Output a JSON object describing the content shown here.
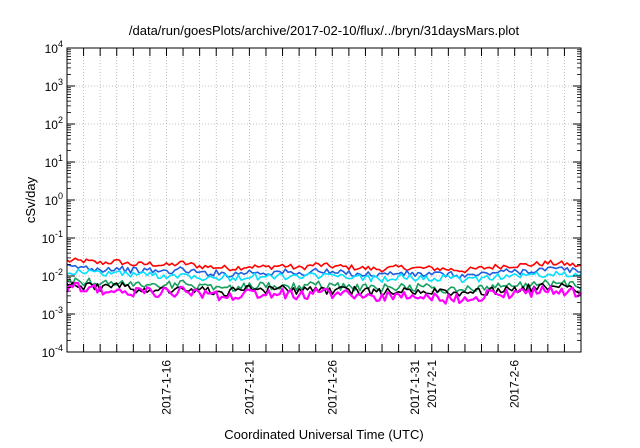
{
  "chart_data": {
    "type": "line",
    "title": "/data/run/goesPlots/archive/2017-02-10/flux/../bryn/31daysMars.plot",
    "xlabel": "Coordinated Universal Time (UTC)",
    "ylabel": "cSv/day",
    "yscale": "log",
    "ylim": [
      0.0001,
      10000
    ],
    "y_ticks": [
      {
        "value": 0.0001,
        "base": "10",
        "exp": "-4"
      },
      {
        "value": 0.001,
        "base": "10",
        "exp": "-3"
      },
      {
        "value": 0.01,
        "base": "10",
        "exp": "-2"
      },
      {
        "value": 0.1,
        "base": "10",
        "exp": "-1"
      },
      {
        "value": 1,
        "base": "10",
        "exp": "0"
      },
      {
        "value": 10,
        "base": "10",
        "exp": "1"
      },
      {
        "value": 100,
        "base": "10",
        "exp": "2"
      },
      {
        "value": 1000,
        "base": "10",
        "exp": "3"
      },
      {
        "value": 10000,
        "base": "10",
        "exp": "4"
      }
    ],
    "xlim": [
      "2017-01-10",
      "2017-02-10"
    ],
    "x_ticks": [
      "2017-1-16",
      "2017-1-21",
      "2017-1-26",
      "2017-1-31",
      "2017-2-1",
      "2017-2-6"
    ],
    "x_tick_dates": [
      "2017-01-16",
      "2017-01-21",
      "2017-01-26",
      "2017-01-31",
      "2017-02-01",
      "2017-02-06"
    ],
    "grid": true,
    "x_daily": [
      "2017-01-11",
      "2017-01-12",
      "2017-01-13",
      "2017-01-14",
      "2017-01-15",
      "2017-01-16",
      "2017-01-17",
      "2017-01-18",
      "2017-01-19",
      "2017-01-20",
      "2017-01-21",
      "2017-01-22",
      "2017-01-23",
      "2017-01-24",
      "2017-01-25",
      "2017-01-26",
      "2017-01-27",
      "2017-01-28",
      "2017-01-29",
      "2017-01-30",
      "2017-01-31",
      "2017-02-01",
      "2017-02-02",
      "2017-02-03",
      "2017-02-04",
      "2017-02-05",
      "2017-02-06",
      "2017-02-07",
      "2017-02-08",
      "2017-02-09",
      "2017-02-10"
    ],
    "series": [
      {
        "color": "#ff0000",
        "values": [
          0.025,
          0.022,
          0.024,
          0.02,
          0.021,
          0.019,
          0.022,
          0.018,
          0.017,
          0.016,
          0.018,
          0.017,
          0.019,
          0.016,
          0.02,
          0.018,
          0.017,
          0.016,
          0.015,
          0.017,
          0.016,
          0.016,
          0.015,
          0.014,
          0.016,
          0.018,
          0.019,
          0.02,
          0.022,
          0.021,
          0.018
        ]
      },
      {
        "color": "#1e5fe0",
        "values": [
          0.017,
          0.015,
          0.016,
          0.014,
          0.014,
          0.013,
          0.015,
          0.012,
          0.012,
          0.011,
          0.013,
          0.012,
          0.013,
          0.011,
          0.014,
          0.012,
          0.012,
          0.011,
          0.011,
          0.012,
          0.011,
          0.011,
          0.011,
          0.01,
          0.011,
          0.013,
          0.013,
          0.014,
          0.015,
          0.015,
          0.013
        ]
      },
      {
        "color": "#00e0ff",
        "values": [
          0.013,
          0.012,
          0.012,
          0.011,
          0.011,
          0.01,
          0.011,
          0.0095,
          0.0092,
          0.0088,
          0.0098,
          0.0093,
          0.01,
          0.0088,
          0.0105,
          0.0095,
          0.0093,
          0.0088,
          0.0085,
          0.0092,
          0.0088,
          0.0088,
          0.0084,
          0.008,
          0.0088,
          0.0098,
          0.01,
          0.0105,
          0.011,
          0.011,
          0.0098
        ]
      },
      {
        "color": "#18a060",
        "values": [
          0.0072,
          0.0065,
          0.0068,
          0.006,
          0.0061,
          0.0057,
          0.0063,
          0.0054,
          0.0052,
          0.005,
          0.0056,
          0.0053,
          0.0057,
          0.005,
          0.006,
          0.0054,
          0.0053,
          0.005,
          0.0048,
          0.0052,
          0.005,
          0.005,
          0.004,
          0.0045,
          0.005,
          0.0056,
          0.0057,
          0.006,
          0.0064,
          0.0063,
          0.0056
        ]
      },
      {
        "color": "#000000",
        "values": [
          0.0056,
          0.0051,
          0.0053,
          0.0047,
          0.0048,
          0.0044,
          0.0049,
          0.0042,
          0.004,
          0.0039,
          0.0043,
          0.0041,
          0.0044,
          0.0039,
          0.0046,
          0.0042,
          0.0041,
          0.0039,
          0.0037,
          0.004,
          0.0039,
          0.0039,
          0.0031,
          0.0035,
          0.0039,
          0.0043,
          0.0044,
          0.0047,
          0.005,
          0.0049,
          0.0043
        ]
      },
      {
        "color": "#ff00ff",
        "values": [
          0.005,
          0.0042,
          0.0045,
          0.0038,
          0.004,
          0.0036,
          0.0041,
          0.0033,
          0.0031,
          0.003,
          0.0034,
          0.0032,
          0.0035,
          0.003,
          0.0037,
          0.0033,
          0.0032,
          0.003,
          0.0028,
          0.0031,
          0.003,
          0.003,
          0.0024,
          0.0027,
          0.003,
          0.0034,
          0.0035,
          0.0038,
          0.0041,
          0.004,
          0.0034
        ]
      }
    ]
  }
}
